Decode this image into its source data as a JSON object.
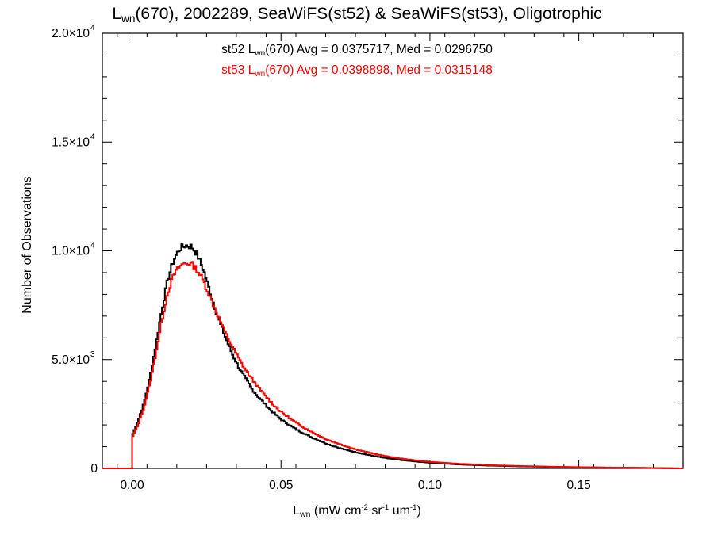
{
  "title": {
    "pre": "L",
    "sub": "wn",
    "post": "(670), 2002289, SeaWiFS(st52) & SeaWiFS(st53), Oligotrophic"
  },
  "annotations": [
    {
      "pre": "st52 L",
      "sub": "wn",
      "post": "(670) Avg = 0.0375717, Med = 0.0296750",
      "color": "#000000"
    },
    {
      "pre": "st53 L",
      "sub": "wn",
      "post": "(670) Avg = 0.0398898, Med = 0.0315148",
      "color": "#ff0000"
    }
  ],
  "xlabel": {
    "pre": "L",
    "sub": "wn",
    "mid": " (mW cm",
    "sup1": "-2",
    "mid2": " sr",
    "sup2": "-1",
    "mid3": " um",
    "sup3": "-1",
    "post": ")"
  },
  "ylabel": "Number of Observations",
  "chart_data": {
    "type": "line",
    "step": true,
    "xlim": [
      -0.01,
      0.185
    ],
    "ylim": [
      0,
      20000
    ],
    "xticks": [
      {
        "value": 0.0,
        "label": "0.00"
      },
      {
        "value": 0.05,
        "label": "0.05"
      },
      {
        "value": 0.1,
        "label": "0.10"
      },
      {
        "value": 0.15,
        "label": "0.15"
      }
    ],
    "yticks": [
      {
        "value": 0,
        "label": "0"
      },
      {
        "value": 5000,
        "label": "5.0×10",
        "exp": "3"
      },
      {
        "value": 10000,
        "label": "1.0×10",
        "exp": "4"
      },
      {
        "value": 15000,
        "label": "1.5×10",
        "exp": "4"
      },
      {
        "value": 20000,
        "label": "2.0×10",
        "exp": "4"
      }
    ],
    "series": [
      {
        "color": "#000000",
        "x": [
          -0.01,
          0,
          0.002,
          0.004,
          0.006,
          0.008,
          0.01,
          0.012,
          0.014,
          0.016,
          0.018,
          0.02,
          0.022,
          0.024,
          0.026,
          0.028,
          0.03,
          0.032,
          0.034,
          0.036,
          0.038,
          0.04,
          0.042,
          0.044,
          0.046,
          0.048,
          0.05,
          0.055,
          0.06,
          0.065,
          0.07,
          0.075,
          0.08,
          0.085,
          0.09,
          0.095,
          0.1,
          0.11,
          0.12,
          0.13,
          0.14,
          0.15,
          0.16,
          0.17,
          0.185
        ],
        "y": [
          0,
          1500,
          2200,
          3000,
          4200,
          5700,
          7300,
          8700,
          9600,
          10100,
          10250,
          10200,
          9800,
          9100,
          8200,
          7300,
          6500,
          5800,
          5150,
          4600,
          4150,
          3700,
          3350,
          3050,
          2750,
          2500,
          2250,
          1800,
          1450,
          1150,
          920,
          750,
          600,
          480,
          390,
          320,
          260,
          180,
          130,
          95,
          70,
          50,
          35,
          25,
          0
        ]
      },
      {
        "color": "#ff0000",
        "x": [
          -0.01,
          0,
          0.002,
          0.004,
          0.006,
          0.008,
          0.01,
          0.012,
          0.014,
          0.016,
          0.018,
          0.02,
          0.022,
          0.024,
          0.026,
          0.028,
          0.03,
          0.032,
          0.034,
          0.036,
          0.038,
          0.04,
          0.042,
          0.044,
          0.046,
          0.048,
          0.05,
          0.055,
          0.06,
          0.065,
          0.07,
          0.075,
          0.08,
          0.085,
          0.09,
          0.095,
          0.1,
          0.11,
          0.12,
          0.13,
          0.14,
          0.15,
          0.16,
          0.17,
          0.185
        ],
        "y": [
          0,
          1400,
          2000,
          2800,
          3900,
          5300,
          6800,
          8100,
          8900,
          9300,
          9450,
          9400,
          9100,
          8600,
          7950,
          7300,
          6650,
          6050,
          5500,
          5000,
          4550,
          4150,
          3800,
          3450,
          3150,
          2850,
          2600,
          2100,
          1700,
          1350,
          1100,
          880,
          710,
          570,
          460,
          370,
          300,
          210,
          150,
          110,
          80,
          58,
          40,
          28,
          0
        ]
      }
    ]
  }
}
